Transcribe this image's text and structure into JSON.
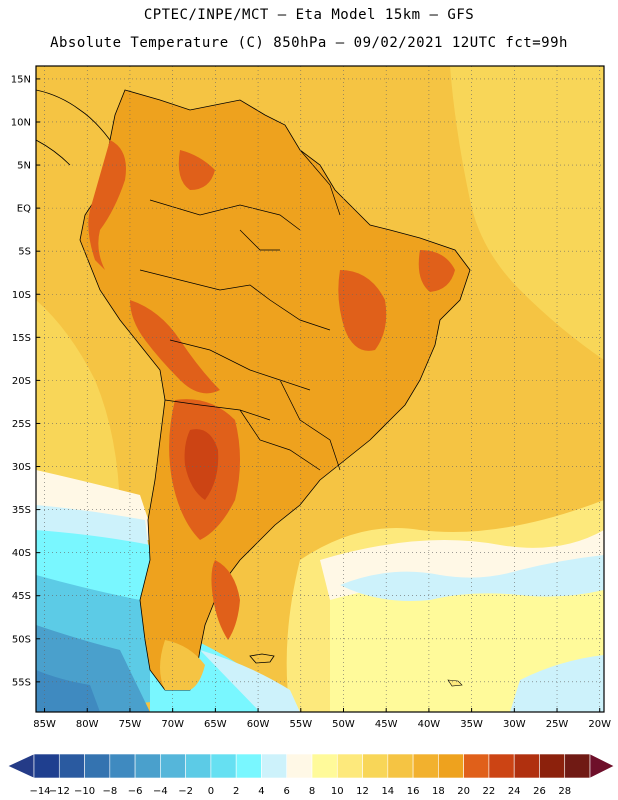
{
  "header": {
    "line1": "CPTEC/INPE/MCT –  Eta Model 15km – GFS",
    "line2": "Absolute Temperature (C) 850hPa – 09/02/2021 12UTC fct=99h"
  },
  "axes": {
    "lat_labels": [
      "15N",
      "10N",
      "5N",
      "EQ",
      "5S",
      "10S",
      "15S",
      "20S",
      "25S",
      "30S",
      "35S",
      "40S",
      "45S",
      "50S",
      "55S"
    ],
    "lon_labels": [
      "85W",
      "80W",
      "75W",
      "70W",
      "65W",
      "60W",
      "55W",
      "50W",
      "45W",
      "40W",
      "35W",
      "30W",
      "25W",
      "20W"
    ]
  },
  "colorbar": {
    "labels": [
      "-14",
      "-12",
      "-10",
      "-8",
      "-6",
      "-4",
      "-2",
      "0",
      "2",
      "4",
      "6",
      "8",
      "10",
      "12",
      "14",
      "16",
      "18",
      "20",
      "22",
      "24",
      "26",
      "28"
    ],
    "colors": [
      "#1f3f8f",
      "#2a5aa0",
      "#3473b0",
      "#3f8ac0",
      "#4aa0cc",
      "#55b6da",
      "#5ccbe6",
      "#66e0f2",
      "#79f7ff",
      "#cdf2fb",
      "#fff8e6",
      "#fffa9a",
      "#fde97c",
      "#f8d658",
      "#f5c443",
      "#f2b12e",
      "#eea21e",
      "#e0601a",
      "#cc4414",
      "#b0300f",
      "#8c210c",
      "#701a14"
    ],
    "under_color": "#243b87",
    "over_color": "#6e0f2a"
  },
  "map": {
    "ocean_color": "#f5c443",
    "land_color": "#eea21e",
    "cold_colors": [
      "#fff8e6",
      "#cdf2fb",
      "#79f7ff",
      "#5ccbe6",
      "#4aa0cc",
      "#3473b0"
    ],
    "warm_colors": [
      "#e0601a",
      "#cc4414",
      "#b0300f"
    ]
  }
}
